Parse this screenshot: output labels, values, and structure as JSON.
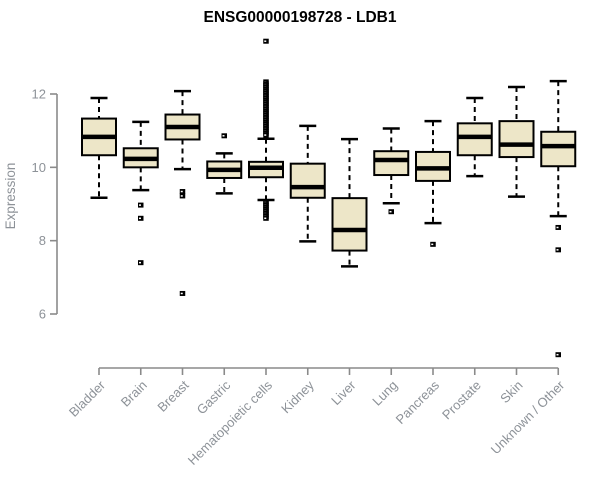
{
  "chart_data": {
    "type": "boxplot",
    "title": "ENSG00000198728 - LDB1",
    "ylabel": "Expression",
    "xlabel": "",
    "y_ticks": [
      6,
      8,
      10,
      12
    ],
    "ylim_ticks": [
      6,
      12
    ],
    "drawn_value_range": [
      4.89,
      13.44
    ],
    "grid": "off",
    "legend": "none",
    "categories": [
      "Bladder",
      "Brain",
      "Breast",
      "Gastric",
      "Hematopoietic cells",
      "Kidney",
      "Liver",
      "Lung",
      "Pancreas",
      "Prostate",
      "Skin",
      "Unknown / Other"
    ],
    "series": [
      {
        "name": "Bladder",
        "slug": "bladder",
        "whisker_low": 9.17,
        "q1": 10.33,
        "median": 10.83,
        "q3": 11.33,
        "whisker_high": 11.89,
        "outliers": []
      },
      {
        "name": "Brain",
        "slug": "brain",
        "whisker_low": 9.38,
        "q1": 10.0,
        "median": 10.23,
        "q3": 10.52,
        "whisker_high": 11.24,
        "outliers": [
          8.97,
          8.61,
          7.4
        ]
      },
      {
        "name": "Breast",
        "slug": "breast",
        "whisker_low": 9.95,
        "q1": 10.76,
        "median": 11.1,
        "q3": 11.44,
        "whisker_high": 12.08,
        "outliers": [
          9.34,
          9.22,
          6.56
        ]
      },
      {
        "name": "Gastric",
        "slug": "gastric",
        "whisker_low": 9.29,
        "q1": 9.71,
        "median": 9.93,
        "q3": 10.16,
        "whisker_high": 10.38,
        "outliers": [
          10.86
        ]
      },
      {
        "name": "Hematopoietic cells",
        "slug": "hematopoietic-cells",
        "whisker_low": 9.11,
        "q1": 9.73,
        "median": 9.99,
        "q3": 10.15,
        "whisker_high": 10.78,
        "outliers": [
          13.44,
          12.33,
          12.28,
          12.23,
          12.18,
          12.13,
          12.08,
          12.03,
          11.98,
          11.93,
          11.88,
          11.83,
          11.78,
          11.73,
          11.68,
          11.63,
          11.58,
          11.53,
          11.48,
          11.43,
          11.38,
          11.33,
          11.28,
          11.23,
          11.18,
          11.13,
          11.08,
          11.03,
          10.98,
          10.93,
          10.88,
          9.06,
          9.01,
          8.96,
          8.91,
          8.86,
          8.81,
          8.76,
          8.71,
          8.66,
          8.61
        ]
      },
      {
        "name": "Kidney",
        "slug": "kidney",
        "whisker_low": 7.98,
        "q1": 9.17,
        "median": 9.46,
        "q3": 10.1,
        "whisker_high": 11.13,
        "outliers": []
      },
      {
        "name": "Liver",
        "slug": "liver",
        "whisker_low": 7.3,
        "q1": 7.73,
        "median": 8.29,
        "q3": 9.16,
        "whisker_high": 10.77,
        "outliers": []
      },
      {
        "name": "Lung",
        "slug": "lung",
        "whisker_low": 9.02,
        "q1": 9.79,
        "median": 10.2,
        "q3": 10.44,
        "whisker_high": 11.06,
        "outliers": [
          8.79
        ]
      },
      {
        "name": "Pancreas",
        "slug": "pancreas",
        "whisker_low": 8.48,
        "q1": 9.63,
        "median": 9.97,
        "q3": 10.42,
        "whisker_high": 11.26,
        "outliers": [
          7.9
        ]
      },
      {
        "name": "Prostate",
        "slug": "prostate",
        "whisker_low": 9.76,
        "q1": 10.33,
        "median": 10.83,
        "q3": 11.2,
        "whisker_high": 11.89,
        "outliers": []
      },
      {
        "name": "Skin",
        "slug": "skin",
        "whisker_low": 9.2,
        "q1": 10.28,
        "median": 10.62,
        "q3": 11.26,
        "whisker_high": 12.19,
        "outliers": []
      },
      {
        "name": "Unknown / Other",
        "slug": "unknown-other",
        "whisker_low": 8.67,
        "q1": 10.03,
        "median": 10.58,
        "q3": 10.97,
        "whisker_high": 12.35,
        "outliers": [
          8.36,
          7.75,
          4.89
        ]
      }
    ],
    "colors": {
      "box_fill": "#EDE6C8",
      "box_border": "#000000",
      "median": "#000000",
      "whisker": "#000000",
      "outlier": "#000000",
      "axis": "#8a8a8a",
      "tick_label": "#8d9298",
      "title": "#000000"
    }
  }
}
